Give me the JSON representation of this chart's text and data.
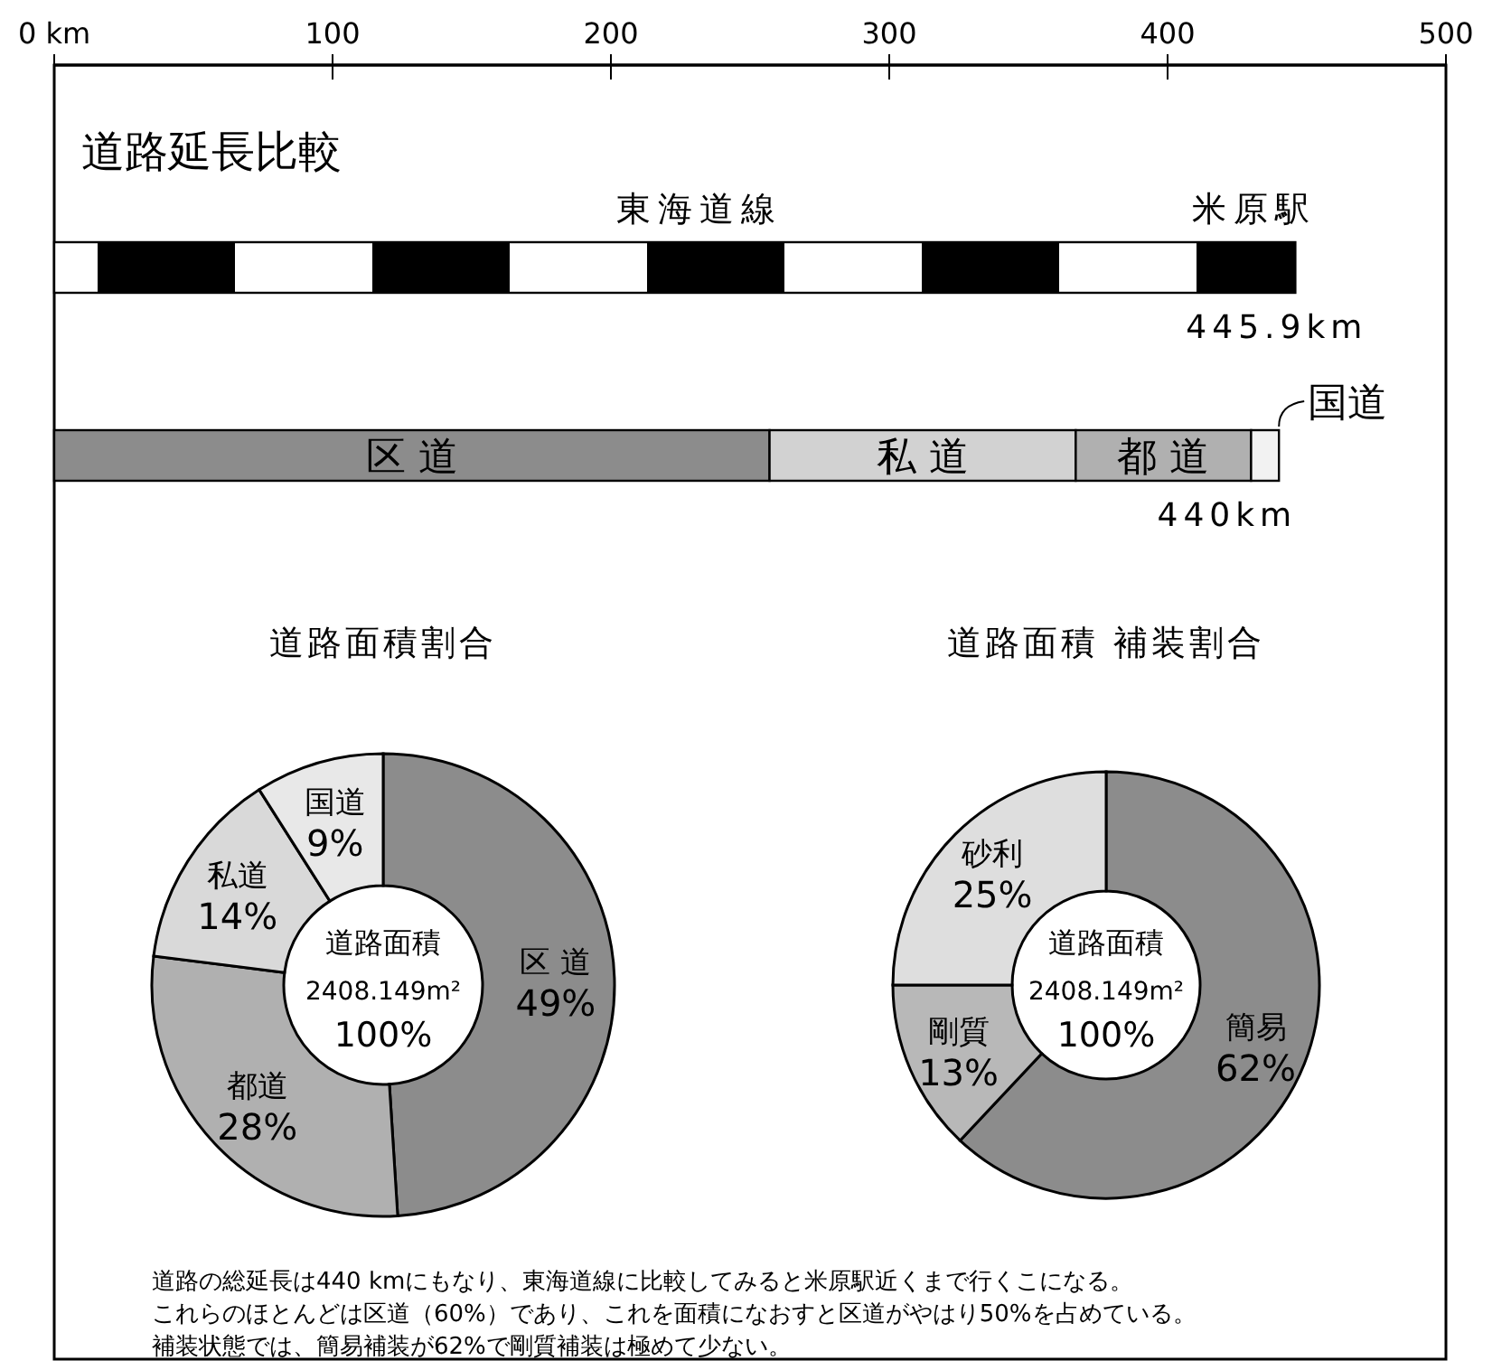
{
  "chart_data": [
    {
      "type": "bar",
      "orientation": "horizontal",
      "stacked": true,
      "title": "道路延長比較",
      "categories": [
        null,
        null
      ],
      "xlim": [
        0,
        500
      ],
      "xticks": [
        {
          "value": 0,
          "label": "0 km"
        },
        100,
        200,
        300,
        400,
        500
      ],
      "series": [
        {
          "name": "東海道線",
          "color": "#000000",
          "values": [
            445.9,
            null
          ]
        },
        {
          "name": "区 道",
          "color": "#8c8c8c",
          "values": [
            null,
            257
          ]
        },
        {
          "name": "私 道",
          "color": "#d2d2d2",
          "values": [
            null,
            110
          ]
        },
        {
          "name": "都 道",
          "color": "#b0b0b0",
          "values": [
            null,
            63
          ]
        },
        {
          "name": "国道",
          "color": "#f2f2f2",
          "values": [
            null,
            10
          ]
        }
      ],
      "totals": [
        "445.9km",
        "440km"
      ],
      "annotations": [
        "米原駅"
      ]
    },
    {
      "type": "donut",
      "title": "道路面積割合",
      "categories": [
        "区 道",
        "都道",
        "私道",
        "国道"
      ],
      "values": [
        49,
        28,
        14,
        9
      ],
      "colors": [
        "#8c8c8c",
        "#b0b0b0",
        "#d9d9d9",
        "#e8e8e8"
      ],
      "value_labels": [
        "49%",
        "28%",
        "14%",
        "9%"
      ],
      "annotations": [
        "道路面積",
        "2408.149m²",
        "100%"
      ]
    },
    {
      "type": "donut",
      "title": "道路面積 補装割合",
      "categories": [
        "簡易",
        "剛質",
        "砂利"
      ],
      "values": [
        62,
        13,
        25
      ],
      "colors": [
        "#8c8c8c",
        "#b8b8b8",
        "#dedede"
      ],
      "value_labels": [
        "62%",
        "13%",
        "25%"
      ],
      "annotations": [
        "道路面積",
        "2408.149m²",
        "100%"
      ]
    },
    {
      "type": "other",
      "annotations": [
        "道路の総延長は440 kmにもなり、東海道線に比較してみると米原駅近くまで行くこになる。",
        "これらのほとんどは区道（60%）であり、これを面積になおすと区道がやはり50%を占めている。",
        "補装状態では、簡易補装が62%で剛質補装は極めて少ない。"
      ]
    }
  ]
}
